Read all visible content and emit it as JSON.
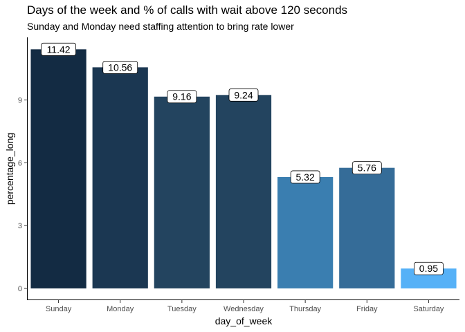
{
  "chart_data": {
    "type": "bar",
    "title": "Days of the week and % of calls with wait above 120 seconds",
    "subtitle": "Sunday and Monday need staffing attention to bring rate lower",
    "xlabel": "day_of_week",
    "ylabel": "percentage_long",
    "categories": [
      "Sunday",
      "Monday",
      "Tuesday",
      "Wednesday",
      "Thursday",
      "Friday",
      "Saturday"
    ],
    "values": [
      11.42,
      10.56,
      9.16,
      9.24,
      5.32,
      5.76,
      0.95
    ],
    "data_labels": [
      "11.42",
      "10.56",
      "9.16",
      "9.24",
      "5.32",
      "5.76",
      "0.95"
    ],
    "yticks": [
      0,
      3,
      6,
      9
    ],
    "ylim": [
      0,
      12.0
    ],
    "grid": false,
    "legend": "none",
    "colors": [
      "#132b43",
      "#1b3752",
      "#23445f",
      "#23445f",
      "#3a7eb0",
      "#356c98",
      "#56b1f7"
    ]
  }
}
